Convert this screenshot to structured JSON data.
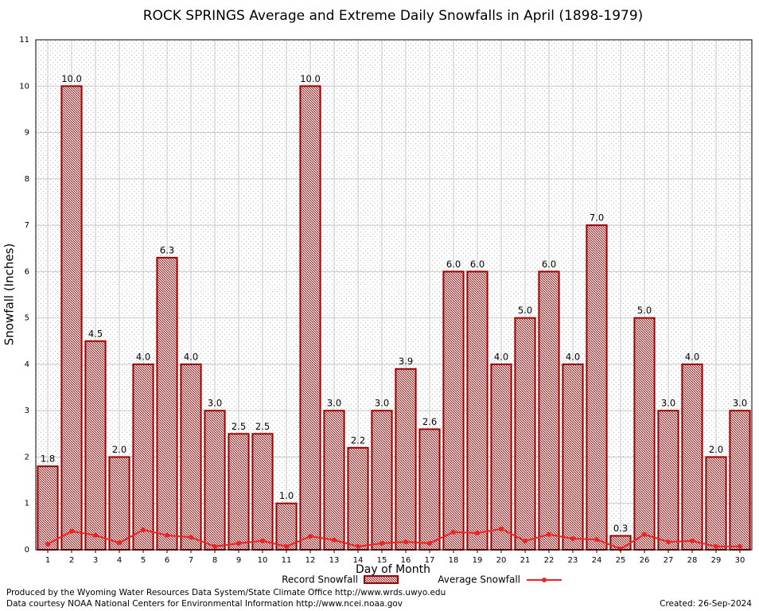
{
  "chart_data": {
    "type": "bar",
    "title": "ROCK SPRINGS Average and Extreme Daily Snowfalls in April (1898-1979)",
    "x_label": "Day of Month",
    "y_label": "Snowfall (Inches)",
    "categories": [
      "1",
      "2",
      "3",
      "4",
      "5",
      "6",
      "7",
      "8",
      "9",
      "10",
      "11",
      "12",
      "13",
      "14",
      "15",
      "16",
      "17",
      "18",
      "19",
      "20",
      "21",
      "22",
      "23",
      "24",
      "25",
      "26",
      "27",
      "28",
      "29",
      "30"
    ],
    "series": [
      {
        "name": "Record Snowfall",
        "type": "bar",
        "color": "#a00000",
        "values": [
          1.8,
          10.0,
          4.5,
          2.0,
          4.0,
          6.3,
          4.0,
          3.0,
          2.5,
          2.5,
          1.0,
          10.0,
          3.0,
          2.2,
          3.0,
          3.9,
          2.6,
          6.0,
          6.0,
          4.0,
          5.0,
          6.0,
          4.0,
          7.0,
          0.3,
          5.0,
          3.0,
          4.0,
          2.0,
          3.0
        ],
        "value_labels": [
          "1.8",
          "10.0",
          "4.5",
          "2.0",
          "4.0",
          "6.3",
          "4.0",
          "3.0",
          "2.5",
          "2.5",
          "1.0",
          "10.0",
          "3.0",
          "2.2",
          "3.0",
          "3.9",
          "2.6",
          "6.0",
          "6.0",
          "4.0",
          "5.0",
          "6.0",
          "4.0",
          "7.0",
          "0.3",
          "5.0",
          "3.0",
          "4.0",
          "2.0",
          "3.0"
        ]
      },
      {
        "name": "Average Snowfall",
        "type": "line",
        "color": "#ee2222",
        "values": [
          0.12,
          0.4,
          0.31,
          0.15,
          0.43,
          0.31,
          0.27,
          0.07,
          0.14,
          0.19,
          0.07,
          0.29,
          0.21,
          0.07,
          0.14,
          0.17,
          0.14,
          0.38,
          0.36,
          0.45,
          0.19,
          0.33,
          0.24,
          0.22,
          0.02,
          0.33,
          0.17,
          0.19,
          0.07,
          0.07
        ]
      }
    ],
    "ylim": [
      0,
      11
    ],
    "yticks": [
      0,
      1,
      2,
      3,
      4,
      5,
      6,
      7,
      8,
      9,
      10,
      11
    ],
    "grid": true,
    "footer": [
      "Produced by the Wyoming Water Resources Data System/State Climate Office http://www.wrds.uwyo.edu",
      "Data courtesy NOAA National Centers for Environmental Information http://www.ncei.noaa.gov"
    ],
    "created": "Created: 26-Sep-2024"
  }
}
